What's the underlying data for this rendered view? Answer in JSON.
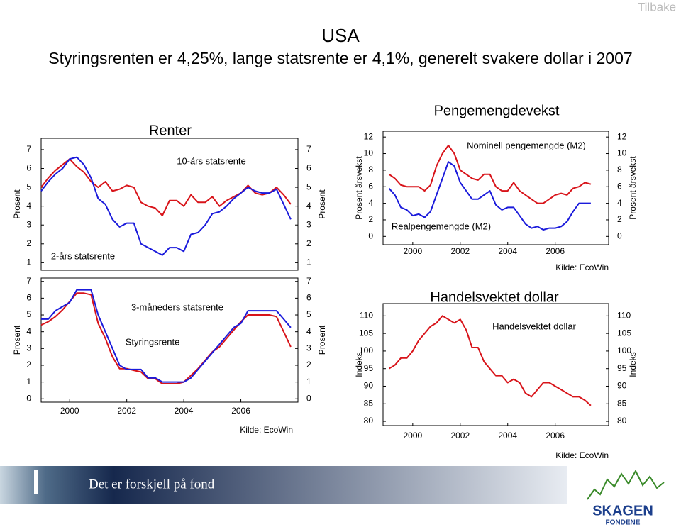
{
  "page": {
    "button": "Tilbake",
    "title": "USA",
    "subtitle": "Styringsrenten er 4,25%, lange statsrente er 4,1%, generelt svakere dollar i 2007",
    "footer_slogan": "Det er forskjell på fond",
    "logo_name": "SKAGEN",
    "logo_sub": "FONDENE"
  },
  "chart_data": [
    {
      "type": "line",
      "title": "Renter",
      "ylabel": "Prosent",
      "y2label": "Prosent",
      "x": [
        1999,
        1999.25,
        1999.5,
        1999.75,
        2000,
        2000.25,
        2000.5,
        2000.75,
        2001,
        2001.25,
        2001.5,
        2001.75,
        2002,
        2002.25,
        2002.5,
        2002.75,
        2003,
        2003.25,
        2003.5,
        2003.75,
        2004,
        2004.25,
        2004.5,
        2004.75,
        2005,
        2005.25,
        2005.5,
        2005.75,
        2006,
        2006.25,
        2006.5,
        2006.75,
        2007,
        2007.25,
        2007.5,
        2007.75
      ],
      "xlim": [
        1999,
        2008
      ],
      "ylim": [
        0.6,
        7.6
      ],
      "yticks": [
        1,
        2,
        3,
        4,
        5,
        6,
        7
      ],
      "y2lim": [
        0.6,
        7.6
      ],
      "y2ticks": [
        1,
        2,
        3,
        4,
        5,
        6,
        7
      ],
      "series": [
        {
          "name": "10-års statsrente",
          "color": "#d8141a",
          "values": [
            5.0,
            5.5,
            5.9,
            6.2,
            6.5,
            6.1,
            5.8,
            5.3,
            5.0,
            5.3,
            4.8,
            4.9,
            5.1,
            5.0,
            4.2,
            4.0,
            3.9,
            3.5,
            4.3,
            4.3,
            4.0,
            4.6,
            4.2,
            4.2,
            4.5,
            4.0,
            4.3,
            4.5,
            4.7,
            5.1,
            4.7,
            4.6,
            4.7,
            5.0,
            4.6,
            4.1
          ]
        },
        {
          "name": "2-års statsrente",
          "color": "#1a1adb",
          "values": [
            4.8,
            5.3,
            5.7,
            6.0,
            6.5,
            6.6,
            6.2,
            5.5,
            4.4,
            4.1,
            3.3,
            2.9,
            3.1,
            3.1,
            2.0,
            1.8,
            1.6,
            1.4,
            1.8,
            1.8,
            1.6,
            2.5,
            2.6,
            3.0,
            3.6,
            3.7,
            4.0,
            4.4,
            4.7,
            5.0,
            4.8,
            4.7,
            4.7,
            4.9,
            4.1,
            3.3
          ]
        }
      ]
    },
    {
      "type": "line",
      "ylabel": "Prosent",
      "y2label": "Prosent",
      "source": "Kilde: EcoWin",
      "x": [
        1999,
        1999.25,
        1999.5,
        1999.75,
        2000,
        2000.25,
        2000.5,
        2000.75,
        2001,
        2001.25,
        2001.5,
        2001.75,
        2002,
        2002.25,
        2002.5,
        2002.75,
        2003,
        2003.25,
        2003.5,
        2003.75,
        2004,
        2004.25,
        2004.5,
        2004.75,
        2005,
        2005.25,
        2005.5,
        2005.75,
        2006,
        2006.25,
        2006.5,
        2006.75,
        2007,
        2007.25,
        2007.5,
        2007.75
      ],
      "xlim": [
        1999,
        2008
      ],
      "xticks": [
        2000,
        2002,
        2004,
        2006
      ],
      "ylim": [
        -0.2,
        7.2
      ],
      "yticks": [
        0,
        1,
        2,
        3,
        4,
        5,
        6,
        7
      ],
      "y2lim": [
        -0.2,
        7.2
      ],
      "y2ticks": [
        0,
        1,
        2,
        3,
        4,
        5,
        6,
        7
      ],
      "series": [
        {
          "name": "3-måneders statsrente",
          "color": "#d8141a",
          "values": [
            4.4,
            4.6,
            4.9,
            5.3,
            5.8,
            6.3,
            6.3,
            6.2,
            4.5,
            3.6,
            2.5,
            1.8,
            1.8,
            1.7,
            1.6,
            1.2,
            1.2,
            0.9,
            0.9,
            0.9,
            1.0,
            1.4,
            1.8,
            2.3,
            2.8,
            3.1,
            3.6,
            4.1,
            4.6,
            5.0,
            5.0,
            5.0,
            5.0,
            4.9,
            4.0,
            3.1
          ]
        },
        {
          "name": "Styringsrente",
          "color": "#1a1adb",
          "values": [
            4.75,
            4.75,
            5.25,
            5.5,
            5.75,
            6.5,
            6.5,
            6.5,
            5.0,
            4.0,
            3.0,
            2.0,
            1.75,
            1.75,
            1.75,
            1.25,
            1.25,
            1.0,
            1.0,
            1.0,
            1.0,
            1.25,
            1.75,
            2.25,
            2.75,
            3.25,
            3.75,
            4.25,
            4.5,
            5.25,
            5.25,
            5.25,
            5.25,
            5.25,
            4.75,
            4.25
          ]
        }
      ]
    },
    {
      "type": "line",
      "title": "Pengemengdevekst",
      "ylabel": "Prosent årsvekst",
      "y2label": "Prosent årsvekst",
      "source": "Kilde: EcoWin",
      "x": [
        1999,
        1999.25,
        1999.5,
        1999.75,
        2000,
        2000.25,
        2000.5,
        2000.75,
        2001,
        2001.25,
        2001.5,
        2001.75,
        2002,
        2002.25,
        2002.5,
        2002.75,
        2003,
        2003.25,
        2003.5,
        2003.75,
        2004,
        2004.25,
        2004.5,
        2004.75,
        2005,
        2005.25,
        2005.5,
        2005.75,
        2006,
        2006.25,
        2006.5,
        2006.75,
        2007,
        2007.25,
        2007.5
      ],
      "xlim": [
        1998.75,
        2008.25
      ],
      "xticks": [
        2000,
        2002,
        2004,
        2006
      ],
      "ylim": [
        -1,
        12.7
      ],
      "yticks": [
        0,
        2,
        4,
        6,
        8,
        10,
        12
      ],
      "y2lim": [
        -1,
        12.7
      ],
      "y2ticks": [
        0,
        2,
        4,
        6,
        8,
        10,
        12
      ],
      "series": [
        {
          "name": "Nominell pengemengde (M2)",
          "color": "#d8141a",
          "values": [
            7.5,
            7.0,
            6.2,
            6.0,
            6.0,
            6.0,
            5.5,
            6.2,
            8.5,
            10.0,
            11.0,
            10.0,
            8.0,
            7.5,
            7.0,
            6.8,
            7.5,
            7.5,
            6.0,
            5.5,
            5.5,
            6.5,
            5.5,
            5.0,
            4.5,
            4.0,
            4.0,
            4.5,
            5.0,
            5.2,
            5.0,
            5.8,
            6.0,
            6.5,
            6.3
          ]
        },
        {
          "name": "Realpengemengde (M2)",
          "color": "#1a1adb",
          "values": [
            5.8,
            5.0,
            3.5,
            3.2,
            2.5,
            2.7,
            2.3,
            3.0,
            5.0,
            7.0,
            9.0,
            8.5,
            6.5,
            5.5,
            4.5,
            4.5,
            5.0,
            5.5,
            3.8,
            3.2,
            3.5,
            3.5,
            2.5,
            1.5,
            1.0,
            1.2,
            0.8,
            1.0,
            1.0,
            1.2,
            1.8,
            3.0,
            4.0,
            4.0,
            4.0
          ]
        }
      ]
    },
    {
      "type": "line",
      "title": "Handelsvektet dollar",
      "ylabel": "Indeks",
      "y2label": "Indeks",
      "source": "Kilde: EcoWin",
      "x": [
        1999,
        1999.25,
        1999.5,
        1999.75,
        2000,
        2000.25,
        2000.5,
        2000.75,
        2001,
        2001.25,
        2001.5,
        2001.75,
        2002,
        2002.25,
        2002.5,
        2002.75,
        2003,
        2003.25,
        2003.5,
        2003.75,
        2004,
        2004.25,
        2004.5,
        2004.75,
        2005,
        2005.25,
        2005.5,
        2005.75,
        2006,
        2006.25,
        2006.5,
        2006.75,
        2007,
        2007.25,
        2007.5
      ],
      "xlim": [
        1998.75,
        2008.25
      ],
      "xticks": [
        2000,
        2002,
        2004,
        2006
      ],
      "ylim": [
        78.8,
        113.5
      ],
      "yticks": [
        80,
        85,
        90,
        95,
        100,
        105,
        110
      ],
      "y2lim": [
        78.8,
        113.5
      ],
      "y2ticks": [
        80,
        85,
        90,
        95,
        100,
        105,
        110
      ],
      "series": [
        {
          "name": "Handelsvektet dollar",
          "color": "#d8141a",
          "values": [
            95,
            96,
            98,
            98,
            100,
            103,
            105,
            107,
            108,
            110,
            109,
            108,
            109,
            106,
            101,
            101,
            97,
            95,
            93,
            93,
            91,
            92,
            91,
            88,
            87,
            89,
            91,
            91,
            90,
            89,
            88,
            87,
            87,
            86,
            84.5
          ]
        }
      ]
    }
  ]
}
